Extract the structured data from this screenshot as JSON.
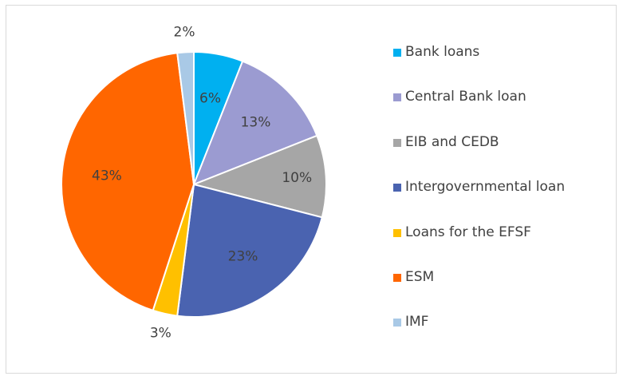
{
  "chart_data": {
    "type": "pie",
    "categories": [
      "Bank loans",
      "Central Bank loan",
      "EIB and CEDB",
      "Intergovernmental loan",
      "Loans for the EFSF",
      "ESM",
      "IMF"
    ],
    "values": [
      6,
      13,
      10,
      23,
      3,
      43,
      2
    ],
    "value_labels": [
      "6%",
      "13%",
      "10%",
      "23%",
      "3%",
      "43%",
      "2%"
    ],
    "colors": [
      "#00b0f0",
      "#9b9bd1",
      "#a6a6a6",
      "#4a63b0",
      "#ffc000",
      "#ff6600",
      "#a9c9e6"
    ],
    "legend_position": "right",
    "start_angle_deg": 0,
    "direction": "clockwise"
  }
}
